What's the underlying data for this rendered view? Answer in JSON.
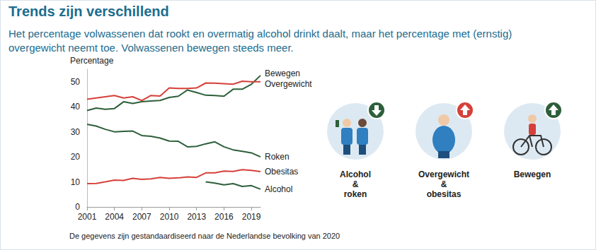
{
  "chart_data": {
    "type": "line",
    "title": "Trends zijn verschillend",
    "subtitle": "Het percentage volwassenen dat rookt en overmatig alcohol drinkt daalt, maar het percentage met (ernstig) overgewicht neemt toe. Volwassenen bewegen steeds meer.",
    "ylabel": "Percentage",
    "x": [
      2001,
      2002,
      2003,
      2004,
      2005,
      2006,
      2007,
      2008,
      2009,
      2010,
      2011,
      2012,
      2013,
      2014,
      2015,
      2016,
      2017,
      2018,
      2019,
      2020
    ],
    "xlim": [
      2001,
      2020
    ],
    "xticks": [
      2001,
      2004,
      2007,
      2010,
      2013,
      2016,
      2019
    ],
    "ylim": [
      0,
      55
    ],
    "yticks": [
      0,
      10,
      20,
      30,
      40,
      50
    ],
    "grid": false,
    "series": [
      {
        "name": "Bewegen",
        "color": "#2d5f3a",
        "values": [
          38.5,
          39.5,
          39,
          39.3,
          42,
          41.3,
          42,
          42.3,
          42.5,
          43.7,
          44.2,
          46.7,
          45.7,
          44.6,
          44.5,
          44.2,
          47,
          47,
          49,
          52.5
        ]
      },
      {
        "name": "Overgewicht",
        "color": "#d6403a",
        "values": [
          43,
          43.5,
          44,
          44.5,
          43.5,
          44,
          42.5,
          44.5,
          44.3,
          47.5,
          47.3,
          47.3,
          47.5,
          49.5,
          49.4,
          49.2,
          49,
          50.2,
          50,
          50
        ]
      },
      {
        "name": "Roken",
        "color": "#2d5f3a",
        "values": [
          33,
          32.3,
          31,
          30,
          30.2,
          30.3,
          28.5,
          28.2,
          27.5,
          26.3,
          26.2,
          24,
          24.2,
          25.2,
          26,
          24,
          22.8,
          22.2,
          21.6,
          20
        ]
      },
      {
        "name": "Obesitas",
        "color": "#d6403a",
        "values": [
          9.3,
          9.4,
          10,
          10.7,
          10.6,
          11.4,
          11,
          11.2,
          11.8,
          11.4,
          11.6,
          12,
          11.8,
          13.6,
          13.6,
          14.3,
          14.2,
          14.9,
          14.6,
          14.1
        ]
      },
      {
        "name": "Alcohol",
        "color": "#2d5f3a",
        "values": [
          null,
          null,
          null,
          null,
          null,
          null,
          null,
          null,
          null,
          null,
          null,
          null,
          null,
          10,
          9.5,
          8.8,
          9.3,
          8.2,
          8.5,
          7.1
        ]
      }
    ],
    "annotations": {
      "note": "De gegevens zijn gestandaardiseerd naar de Nederlandse bevolking van 2020",
      "icons": [
        "Alcohol & roken",
        "Overgewicht & obesitas",
        "Bewegen"
      ]
    }
  }
}
